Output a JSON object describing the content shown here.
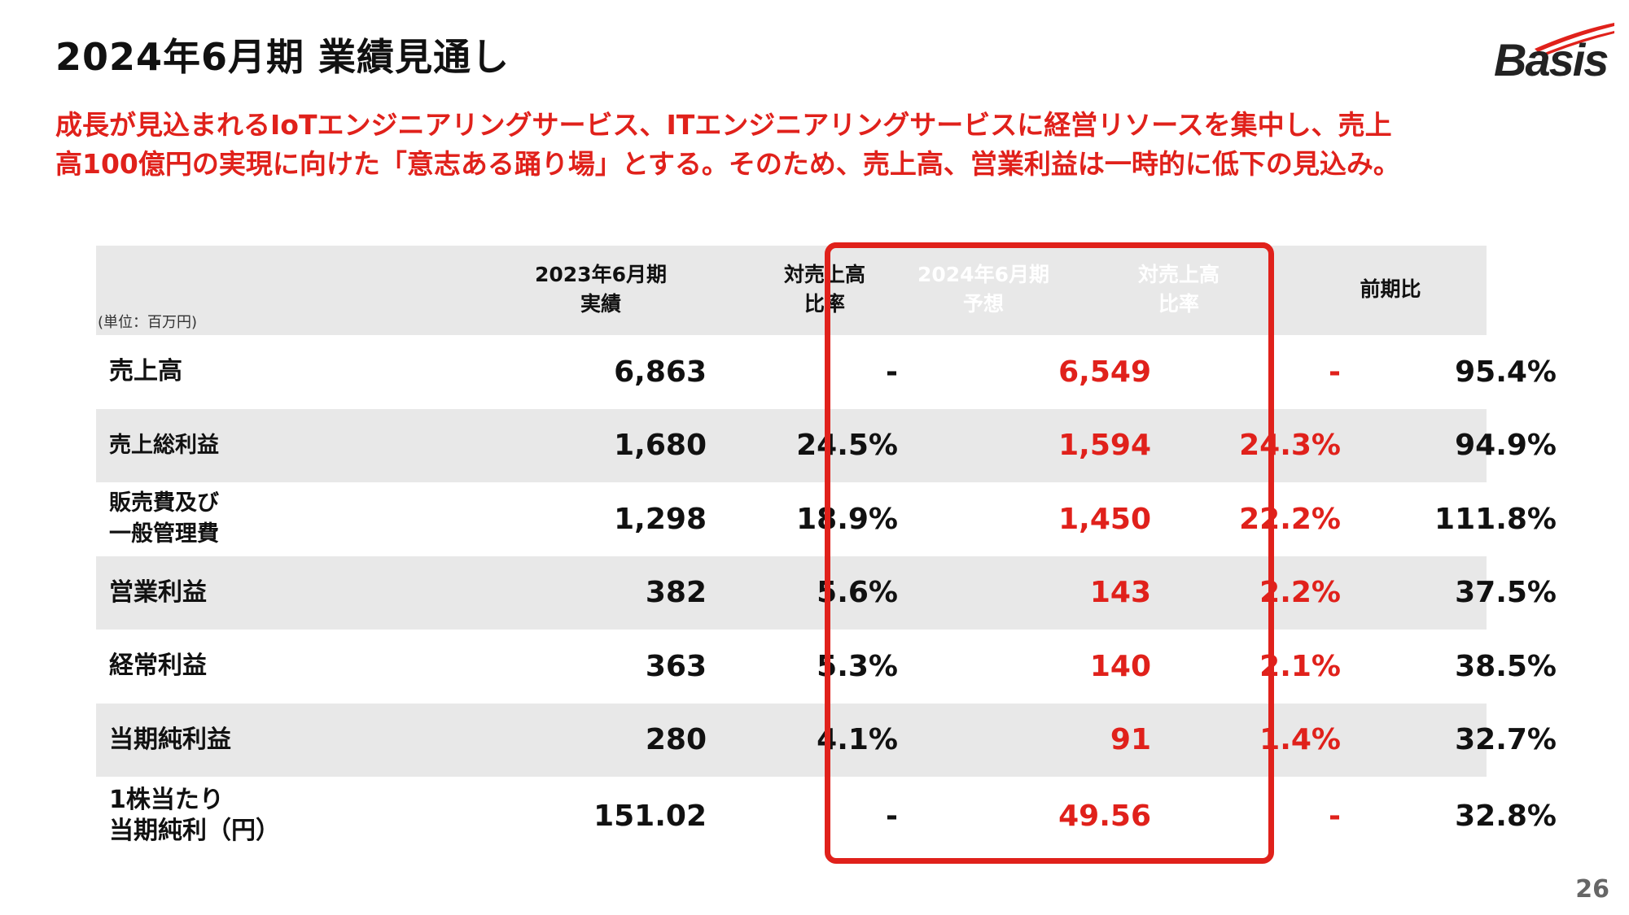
{
  "title": "2024年6月期 業績見通し",
  "logo": {
    "text": "Basis",
    "accent_color": "#e0211b"
  },
  "lead": {
    "line1": "成長が見込まれるIoTエンジニアリングサービス、ITエンジニアリングサービスに経営リソースを集中し、売上",
    "line2": "高100億円の実現に向けた「意志ある踊り場」とする。そのため、売上高、営業利益は一時的に低下の見込み。"
  },
  "table": {
    "unit": "(単位：百万円)",
    "headers": {
      "actual_line1": "2023年6月期",
      "actual_line2": "実績",
      "actual_ratio_line1": "対売上高",
      "actual_ratio_line2": "比率",
      "forecast_line1": "2024年6月期",
      "forecast_line2": "予想",
      "forecast_ratio_line1": "対売上高",
      "forecast_ratio_line2": "比率",
      "yoy": "前期比"
    },
    "rows": [
      {
        "label1": "売上高",
        "label2": "",
        "actual": "6,863",
        "actual_ratio": "-",
        "forecast": "6,549",
        "forecast_ratio": "-",
        "yoy": "95.4%"
      },
      {
        "label1": "売上総利益",
        "label2": "",
        "actual": "1,680",
        "actual_ratio": "24.5%",
        "forecast": "1,594",
        "forecast_ratio": "24.3%",
        "yoy": "94.9%"
      },
      {
        "label1": "販売費及び",
        "label2": "一般管理費",
        "actual": "1,298",
        "actual_ratio": "18.9%",
        "forecast": "1,450",
        "forecast_ratio": "22.2%",
        "yoy": "111.8%"
      },
      {
        "label1": "営業利益",
        "label2": "",
        "actual": "382",
        "actual_ratio": "5.6%",
        "forecast": "143",
        "forecast_ratio": "2.2%",
        "yoy": "37.5%"
      },
      {
        "label1": "経常利益",
        "label2": "",
        "actual": "363",
        "actual_ratio": "5.3%",
        "forecast": "140",
        "forecast_ratio": "2.1%",
        "yoy": "38.5%"
      },
      {
        "label1": "当期純利益",
        "label2": "",
        "actual": "280",
        "actual_ratio": "4.1%",
        "forecast": "91",
        "forecast_ratio": "1.4%",
        "yoy": "32.7%"
      },
      {
        "label1": "1株当たり",
        "label2": "当期純利（円）",
        "actual": "151.02",
        "actual_ratio": "-",
        "forecast": "49.56",
        "forecast_ratio": "-",
        "yoy": "32.8%"
      }
    ]
  },
  "page_number": "26"
}
